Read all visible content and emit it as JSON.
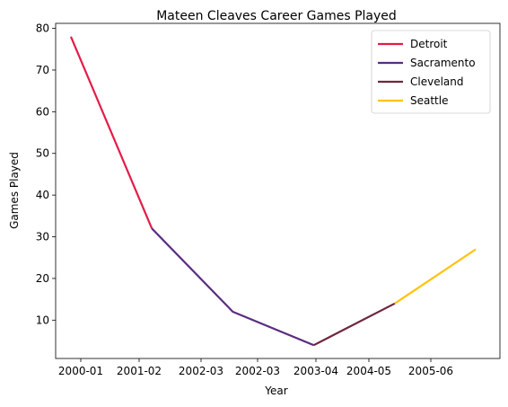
{
  "chart_data": {
    "type": "line",
    "title": "Mateen Cleaves Career Games Played",
    "xlabel": "Year",
    "ylabel": "Games Played",
    "x_tick_labels": [
      "2000-01",
      "2001-02",
      "2002-03",
      "2002-03",
      "2003-04",
      "2004-05",
      "2005-06"
    ],
    "ylim": [
      0.8,
      81.2
    ],
    "y_ticks": [
      10,
      20,
      30,
      40,
      50,
      60,
      70,
      80
    ],
    "grid": false,
    "legend_position": "top-right",
    "series": [
      {
        "name": "Detroit",
        "color": "#E31C47",
        "points": [
          {
            "x": "2000-01",
            "y": 78
          },
          {
            "x": "2001-02",
            "y": 32
          }
        ]
      },
      {
        "name": "Sacramento",
        "color": "#5A2D81",
        "points": [
          {
            "x": "2001-02",
            "y": 32
          },
          {
            "x": "2002-03",
            "y": 12
          },
          {
            "x": "2003-04",
            "y": 4
          }
        ]
      },
      {
        "name": "Cleveland",
        "color": "#6F263D",
        "points": [
          {
            "x": "2003-04",
            "y": 4
          },
          {
            "x": "2004-05",
            "y": 14
          }
        ]
      },
      {
        "name": "Seattle",
        "color": "#FFC20E",
        "points": [
          {
            "x": "2004-05",
            "y": 14
          },
          {
            "x": "2005-06",
            "y": 27
          }
        ]
      }
    ]
  }
}
